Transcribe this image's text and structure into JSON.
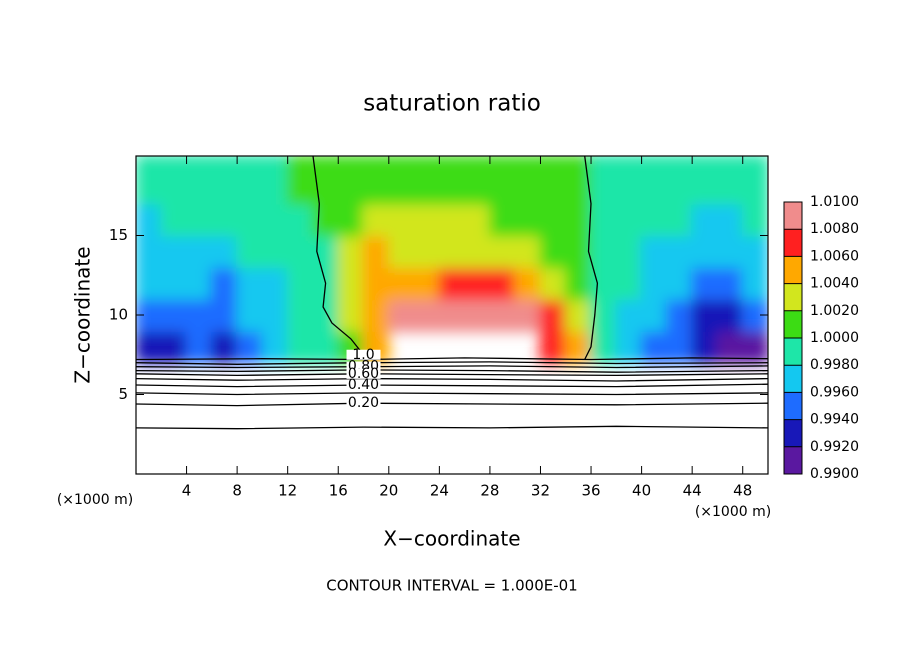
{
  "chart_data": {
    "type": "contour",
    "title": "saturation ratio",
    "xlabel": "X−coordinate",
    "ylabel": "Z−coordinate",
    "x_unit": "(×1000 m)",
    "y_unit": "(×1000 m)",
    "footer": "CONTOUR INTERVAL = 1.000E-01",
    "xlim": [
      0,
      50
    ],
    "ylim": [
      0,
      20
    ],
    "xticks": [
      4,
      8,
      12,
      16,
      20,
      24,
      28,
      32,
      36,
      40,
      44,
      48
    ],
    "yticks": [
      5,
      10,
      15
    ],
    "colorbar": {
      "lim": [
        0.99,
        1.01
      ],
      "ticks": [
        {
          "value": 0.99,
          "label": "0.9900"
        },
        {
          "value": 0.992,
          "label": "0.9920"
        },
        {
          "value": 0.994,
          "label": "0.9940"
        },
        {
          "value": 0.996,
          "label": "0.9960"
        },
        {
          "value": 0.998,
          "label": "0.9980"
        },
        {
          "value": 1.0,
          "label": "1.0000"
        },
        {
          "value": 1.002,
          "label": "1.0020"
        },
        {
          "value": 1.004,
          "label": "1.0040"
        },
        {
          "value": 1.006,
          "label": "1.0060"
        },
        {
          "value": 1.008,
          "label": "1.0080"
        },
        {
          "value": 1.01,
          "label": "1.0100"
        }
      ],
      "colors": [
        "#5a18a0",
        "#1818b8",
        "#1e6cff",
        "#14c8f0",
        "#1ee6a8",
        "#3cdc14",
        "#d2e61e",
        "#ffa800",
        "#ff2020",
        "#f08c8c"
      ]
    },
    "field": {
      "x_edges": [
        0,
        2,
        4,
        6,
        8,
        10,
        12,
        14,
        16,
        18,
        20,
        22,
        24,
        26,
        28,
        30,
        32,
        34,
        36,
        38,
        40,
        42,
        44,
        46,
        48,
        50
      ],
      "y_edges": [
        7,
        9,
        11,
        13,
        15,
        17,
        20
      ],
      "values": [
        [
          0.993,
          0.992,
          0.994,
          0.993,
          0.995,
          0.996,
          0.998,
          0.9995,
          1.001,
          1.005,
          null,
          null,
          null,
          null,
          null,
          null,
          1.007,
          1.004,
          0.999,
          0.997,
          0.995,
          0.994,
          0.992,
          0.991,
          0.991
        ],
        [
          0.994,
          0.995,
          0.995,
          0.994,
          0.996,
          0.996,
          0.998,
          0.9995,
          1.002,
          1.005,
          1.008,
          1.009,
          1.009,
          1.008,
          1.009,
          1.009,
          1.006,
          1.002,
          0.9995,
          0.997,
          0.996,
          0.995,
          0.993,
          0.992,
          0.994
        ],
        [
          0.996,
          0.996,
          0.997,
          0.995,
          0.997,
          0.997,
          0.998,
          0.9995,
          1.002,
          1.004,
          1.004,
          1.005,
          1.006,
          1.006,
          1.007,
          1.005,
          1.003,
          1.001,
          0.9995,
          0.998,
          0.997,
          0.996,
          0.995,
          0.995,
          0.996
        ],
        [
          0.997,
          0.997,
          0.997,
          0.997,
          0.998,
          0.998,
          0.9985,
          0.9995,
          1.003,
          1.004,
          1.003,
          1.002,
          1.002,
          1.003,
          1.003,
          1.002,
          1.001,
          1.0005,
          0.9995,
          0.998,
          0.997,
          0.997,
          0.996,
          0.996,
          0.997
        ],
        [
          0.997,
          0.998,
          0.998,
          0.998,
          0.998,
          0.9985,
          0.999,
          1.0,
          1.001,
          1.002,
          1.002,
          1.002,
          1.002,
          1.002,
          1.001,
          1.001,
          1.001,
          1.0,
          0.9995,
          0.999,
          0.998,
          0.998,
          0.997,
          0.997,
          0.998
        ],
        [
          0.998,
          0.9985,
          0.999,
          0.999,
          0.999,
          0.9995,
          1.0,
          1.0005,
          1.001,
          1.001,
          1.001,
          1.001,
          1.001,
          1.001,
          1.001,
          1.0005,
          1.0005,
          1.0,
          0.9995,
          0.999,
          0.999,
          0.999,
          0.9985,
          0.998,
          0.9985
        ]
      ]
    },
    "contours": [
      {
        "level": {
          "value": 1.0,
          "label": "1.0"
        },
        "x": [
          14,
          14.5,
          14.3,
          15,
          14.8,
          15.5,
          17,
          18
        ],
        "y": [
          20,
          17,
          14,
          12,
          10.5,
          9.5,
          8.5,
          7.5
        ]
      },
      {
        "x": [
          35.5,
          36,
          35.8,
          36.5,
          36.3,
          36,
          35.5
        ],
        "y": [
          20,
          17,
          14,
          12,
          10,
          8,
          7.2
        ]
      },
      {
        "x": [
          0,
          10,
          18,
          26,
          36,
          44,
          50
        ],
        "y": [
          7.2,
          7.25,
          7.2,
          7.3,
          7.2,
          7.3,
          7.25
        ]
      },
      {
        "x": [
          0,
          8,
          18,
          28,
          38,
          50
        ],
        "y": [
          7.0,
          6.9,
          7.0,
          7.05,
          6.95,
          7.0
        ]
      },
      {
        "level": {
          "value": 0.8,
          "label": "0.80"
        },
        "x": [
          0,
          8,
          18,
          28,
          38,
          50
        ],
        "y": [
          6.75,
          6.7,
          6.75,
          6.8,
          6.7,
          6.8
        ]
      },
      {
        "x": [
          0,
          8,
          18,
          28,
          38,
          50
        ],
        "y": [
          6.5,
          6.45,
          6.55,
          6.5,
          6.4,
          6.5
        ]
      },
      {
        "level": {
          "value": 0.6,
          "label": "0.60"
        },
        "x": [
          0,
          8,
          18,
          28,
          38,
          50
        ],
        "y": [
          6.3,
          6.2,
          6.3,
          6.25,
          6.2,
          6.3
        ]
      },
      {
        "x": [
          0,
          8,
          18,
          28,
          38,
          50
        ],
        "y": [
          6.0,
          5.9,
          6.0,
          5.95,
          5.85,
          6.0
        ]
      },
      {
        "level": {
          "value": 0.4,
          "label": "0.40"
        },
        "x": [
          0,
          8,
          18,
          28,
          38,
          50
        ],
        "y": [
          5.6,
          5.5,
          5.6,
          5.55,
          5.5,
          5.65
        ]
      },
      {
        "x": [
          0,
          8,
          18,
          28,
          38,
          50
        ],
        "y": [
          5.1,
          5.0,
          5.1,
          5.05,
          5.0,
          5.1
        ]
      },
      {
        "level": {
          "value": 0.2,
          "label": "0.20"
        },
        "x": [
          0,
          8,
          18,
          28,
          38,
          50
        ],
        "y": [
          4.4,
          4.3,
          4.45,
          4.4,
          4.35,
          4.45
        ]
      },
      {
        "x": [
          0,
          8,
          18,
          28,
          38,
          50
        ],
        "y": [
          2.9,
          2.85,
          2.95,
          2.9,
          3.0,
          2.9
        ]
      }
    ]
  }
}
